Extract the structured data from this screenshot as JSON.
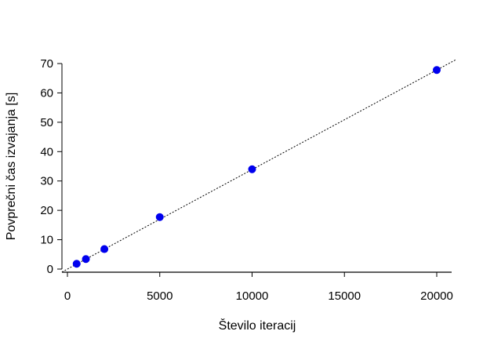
{
  "chart_data": {
    "type": "scatter",
    "title": "",
    "xlabel": "Število iteracij",
    "ylabel": "Povprečni čas izvajanja [s]",
    "xlim": [
      0,
      20000
    ],
    "ylim": [
      0,
      70
    ],
    "x_ticks": [
      0,
      5000,
      10000,
      15000,
      20000
    ],
    "x_tick_labels": [
      "0",
      "5000",
      "10000",
      "15000",
      "20000"
    ],
    "y_ticks": [
      0,
      10,
      20,
      30,
      40,
      50,
      60,
      70
    ],
    "y_tick_labels": [
      "0",
      "10",
      "20",
      "30",
      "40",
      "50",
      "60",
      "70"
    ],
    "grid": false,
    "series": [
      {
        "color": "#0000ee",
        "x": [
          500,
          1000,
          2000,
          5000,
          10000,
          20000
        ],
        "y": [
          1.8,
          3.4,
          6.8,
          17.7,
          34.0,
          67.8
        ]
      }
    ],
    "trend_line": {
      "style": "dotted",
      "color": "#000000",
      "slope": 0.00339,
      "intercept": 0.0
    }
  }
}
